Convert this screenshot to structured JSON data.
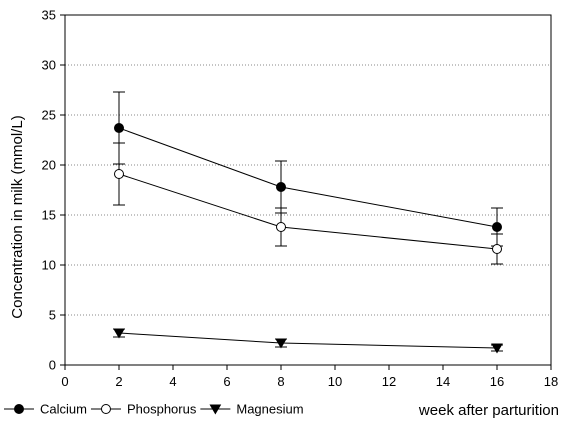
{
  "chart_data": {
    "type": "line",
    "xlabel": "week after parturition",
    "ylabel": "Concentration in milk (mmol/L)",
    "xlim": [
      0,
      18
    ],
    "ylim": [
      0,
      35
    ],
    "x_ticks": [
      0,
      2,
      4,
      6,
      8,
      10,
      12,
      14,
      16,
      18
    ],
    "y_ticks": [
      0,
      5,
      10,
      15,
      20,
      25,
      30,
      35
    ],
    "grid": "horizontal dotted",
    "legend_position": "bottom-left",
    "x": [
      2,
      8,
      16
    ],
    "series": [
      {
        "name": "Calcium",
        "marker": "filled-circle",
        "values": [
          23.7,
          17.8,
          13.8
        ],
        "error": [
          3.6,
          2.6,
          1.9
        ]
      },
      {
        "name": "Phosphorus",
        "marker": "open-circle",
        "values": [
          19.1,
          13.8,
          11.6
        ],
        "error": [
          3.1,
          1.9,
          1.5
        ]
      },
      {
        "name": "Magnesium",
        "marker": "filled-triangle-down",
        "values": [
          3.2,
          2.2,
          1.7
        ],
        "error": [
          0.4,
          0.4,
          0.3
        ]
      }
    ]
  }
}
